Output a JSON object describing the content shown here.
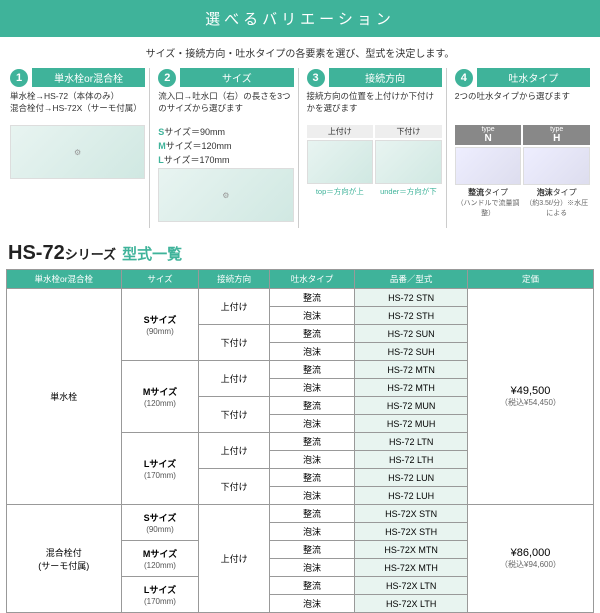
{
  "banner": "選べるバリエーション",
  "subtitle": "サイズ・接続方向・吐水タイプの各要素を選び、型式を決定します。",
  "steps": [
    {
      "num": "1",
      "title": "単水栓or混合栓",
      "desc_lines": [
        "単水栓→HS-72（本体のみ）",
        "混合栓付→HS-72X（サーモ付属）"
      ]
    },
    {
      "num": "2",
      "title": "サイズ",
      "desc": "流入口→吐水口（右）の長さを3つのサイズから選びます",
      "sizes": [
        {
          "k": "S",
          "v": "サイズ＝90mm"
        },
        {
          "k": "M",
          "v": "サイズ＝120mm"
        },
        {
          "k": "L",
          "v": "サイズ＝170mm"
        }
      ]
    },
    {
      "num": "3",
      "title": "接続方向",
      "desc": "接続方向の位置を上付けか下付けかを選びます",
      "opts": [
        {
          "lbl": "上付け",
          "bot": "top＝方向が上"
        },
        {
          "lbl": "下付け",
          "bot": "under＝方向が下"
        }
      ]
    },
    {
      "num": "4",
      "title": "吐水タイプ",
      "desc": "2つの吐水タイプから選びます",
      "types": [
        {
          "badge": "type",
          "big": "N",
          "lbl": "整流タイプ",
          "sub": "（ハンドルで流量調整）"
        },
        {
          "badge": "type",
          "big": "H",
          "lbl": "泡沫タイプ",
          "sub": "（約3.5ℓ/分）※水圧による"
        }
      ]
    }
  ],
  "series": "HS-72",
  "series_suf": "シリーズ",
  "list_title": "型式一覧",
  "headers": [
    "単水栓or混合栓",
    "サイズ",
    "接続方向",
    "吐水タイプ",
    "品番／型式",
    "定価"
  ],
  "groups": [
    {
      "faucet": "単水栓",
      "price": "¥49,500",
      "price_tax": "（税込¥54,450）",
      "sizes": [
        {
          "size": "Sサイズ",
          "mm": "(90mm)",
          "conns": [
            {
              "conn": "上付け",
              "rows": [
                {
                  "flow": "整流",
                  "model": "HS-72 STN"
                },
                {
                  "flow": "泡沫",
                  "model": "HS-72 STH"
                }
              ]
            },
            {
              "conn": "下付け",
              "rows": [
                {
                  "flow": "整流",
                  "model": "HS-72 SUN"
                },
                {
                  "flow": "泡沫",
                  "model": "HS-72 SUH"
                }
              ]
            }
          ]
        },
        {
          "size": "Mサイズ",
          "mm": "(120mm)",
          "conns": [
            {
              "conn": "上付け",
              "rows": [
                {
                  "flow": "整流",
                  "model": "HS-72 MTN"
                },
                {
                  "flow": "泡沫",
                  "model": "HS-72 MTH"
                }
              ]
            },
            {
              "conn": "下付け",
              "rows": [
                {
                  "flow": "整流",
                  "model": "HS-72 MUN"
                },
                {
                  "flow": "泡沫",
                  "model": "HS-72 MUH"
                }
              ]
            }
          ]
        },
        {
          "size": "Lサイズ",
          "mm": "(170mm)",
          "conns": [
            {
              "conn": "上付け",
              "rows": [
                {
                  "flow": "整流",
                  "model": "HS-72 LTN"
                },
                {
                  "flow": "泡沫",
                  "model": "HS-72 LTH"
                }
              ]
            },
            {
              "conn": "下付け",
              "rows": [
                {
                  "flow": "整流",
                  "model": "HS-72 LUN"
                },
                {
                  "flow": "泡沫",
                  "model": "HS-72 LUH"
                }
              ]
            }
          ]
        }
      ]
    },
    {
      "faucet": "混合栓付\n(サーモ付属)",
      "price": "¥86,000",
      "price_tax": "（税込¥94,600）",
      "sizes": [
        {
          "size": "Sサイズ",
          "mm": "(90mm)",
          "conns": [
            {
              "conn": "上付け",
              "shared": true,
              "rows": [
                {
                  "flow": "整流",
                  "model": "HS-72X STN"
                },
                {
                  "flow": "泡沫",
                  "model": "HS-72X STH"
                }
              ]
            }
          ]
        },
        {
          "size": "Mサイズ",
          "mm": "(120mm)",
          "conns": [
            {
              "conn": "",
              "rows": [
                {
                  "flow": "整流",
                  "model": "HS-72X MTN"
                },
                {
                  "flow": "泡沫",
                  "model": "HS-72X MTH"
                }
              ]
            }
          ]
        },
        {
          "size": "Lサイズ",
          "mm": "(170mm)",
          "conns": [
            {
              "conn": "",
              "rows": [
                {
                  "flow": "整流",
                  "model": "HS-72X LTN"
                },
                {
                  "flow": "泡沫",
                  "model": "HS-72X LTH"
                }
              ]
            }
          ]
        }
      ]
    }
  ]
}
